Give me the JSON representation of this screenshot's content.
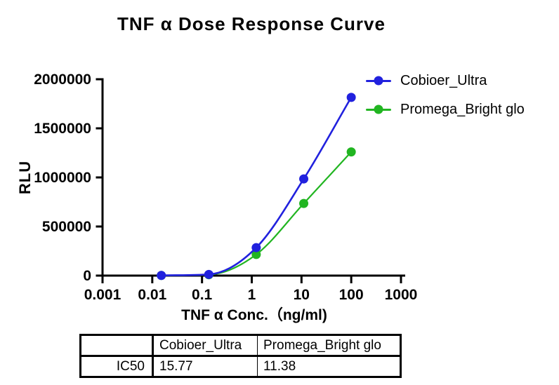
{
  "chart_data": {
    "type": "line",
    "title": "TNF α Dose Response Curve",
    "xlabel": "TNF α Conc.（ng/ml)",
    "ylabel": "RLU",
    "x_scale": "log10",
    "xlim": [
      0.001,
      1000
    ],
    "ylim": [
      0,
      2000000
    ],
    "x_ticks": [
      "0.001",
      "0.01",
      "0.1",
      "1",
      "10",
      "100",
      "1000"
    ],
    "y_ticks": [
      "0",
      "500000",
      "1000000",
      "1500000",
      "2000000"
    ],
    "grid": false,
    "legend_position": "top-right",
    "marker": "circle",
    "x": [
      0.0152,
      0.137,
      1.23,
      11.1,
      100
    ],
    "series": [
      {
        "name": "Cobioer_Ultra",
        "color": "#2121DE",
        "values": [
          2000,
          12000,
          285000,
          985000,
          1815000
        ]
      },
      {
        "name": "Promega_Bright glo",
        "color": "#21B521",
        "values": [
          1500,
          9000,
          215000,
          735000,
          1260000
        ]
      }
    ]
  },
  "table": {
    "headers": [
      "",
      "Cobioer_Ultra",
      "Promega_Bright glo"
    ],
    "rows": [
      [
        "IC50",
        "15.77",
        "11.38"
      ]
    ]
  },
  "colors": {
    "axis": "#000000",
    "background": "#ffffff",
    "cobioer_blue": "#2121DE",
    "promega_green": "#21B521"
  }
}
